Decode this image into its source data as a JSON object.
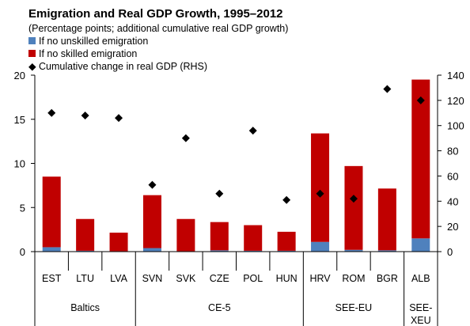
{
  "chart_data": {
    "type": "bar",
    "title": "Emigration and Real GDP Growth, 1995–2012",
    "subtitle": "(Percentage points; additional cumulative  real GDP growth)",
    "categories": [
      "EST",
      "LTU",
      "LVA",
      "SVN",
      "SVK",
      "CZE",
      "POL",
      "HUN",
      "HRV",
      "ROM",
      "BGR",
      "ALB"
    ],
    "groups": [
      {
        "label": "Baltics",
        "categories": [
          "EST",
          "LTU",
          "LVA"
        ]
      },
      {
        "label": "CE-5",
        "categories": [
          "SVN",
          "SVK",
          "CZE",
          "POL",
          "HUN"
        ]
      },
      {
        "label": "SEE-EU",
        "categories": [
          "HRV",
          "ROM",
          "BGR"
        ]
      },
      {
        "label": "SEE-XEU",
        "categories": [
          "ALB"
        ]
      }
    ],
    "series": [
      {
        "name": "If no unskilled emigration",
        "kind": "bar",
        "axis": "left",
        "color": "#4f81bd",
        "values": [
          0.5,
          0.1,
          0.05,
          0.4,
          0.05,
          0.15,
          0.1,
          0.1,
          1.1,
          0.2,
          0.15,
          1.5
        ]
      },
      {
        "name": "If no skilled emigration",
        "kind": "bar",
        "axis": "left",
        "color": "#c00000",
        "values": [
          8.0,
          3.6,
          2.1,
          6.0,
          3.65,
          3.2,
          2.9,
          2.15,
          12.3,
          9.5,
          7.0,
          18.0
        ]
      },
      {
        "name": "Cumulative change in real GDP (RHS)",
        "kind": "marker",
        "axis": "right",
        "color": "#000000",
        "values": [
          110,
          108,
          106,
          53,
          90,
          46,
          96,
          41,
          46,
          42,
          129,
          120
        ]
      }
    ],
    "legend_symbols": {
      "marker": "◆"
    },
    "yaxis_left": {
      "ticks": [
        "0",
        "5",
        "10",
        "15",
        "20"
      ],
      "range": [
        0,
        20
      ]
    },
    "yaxis_right": {
      "ticks": [
        "0",
        "20",
        "40",
        "60",
        "80",
        "100",
        "120",
        "140"
      ],
      "range": [
        0,
        140
      ]
    },
    "stacked": true,
    "grid": false,
    "legend_position": "top-left"
  }
}
